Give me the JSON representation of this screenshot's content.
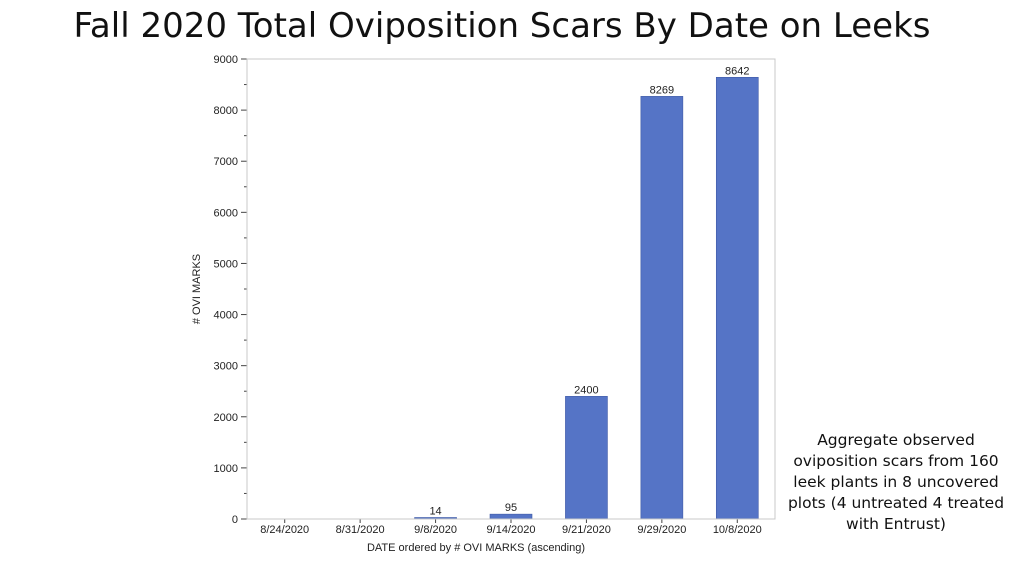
{
  "page": {
    "title": "Fall 2020 Total Oviposition Scars By Date on Leeks",
    "side_note": "Aggregate observed oviposition scars from 160 leek plants in 8 uncovered plots (4 untreated 4 treated with Entrust)"
  },
  "chart_data": {
    "type": "bar",
    "title": "Fall 2020 Total Oviposition Scars By Date on Leeks",
    "categories": [
      "8/24/2020",
      "8/31/2020",
      "9/8/2020",
      "9/14/2020",
      "9/21/2020",
      "9/29/2020",
      "10/8/2020"
    ],
    "values": [
      0,
      0,
      14,
      95,
      2400,
      8269,
      8642
    ],
    "data_labels": [
      "",
      "",
      "14",
      "95",
      "2400",
      "8269",
      "8642"
    ],
    "xlabel": "DATE ordered by # OVI MARKS (ascending)",
    "ylabel": "# OVI MARKS",
    "ylim": [
      0,
      9000
    ],
    "yticks": [
      0,
      1000,
      2000,
      3000,
      4000,
      5000,
      6000,
      7000,
      8000,
      9000
    ],
    "grid": false,
    "bar_color": "#5574c6"
  }
}
